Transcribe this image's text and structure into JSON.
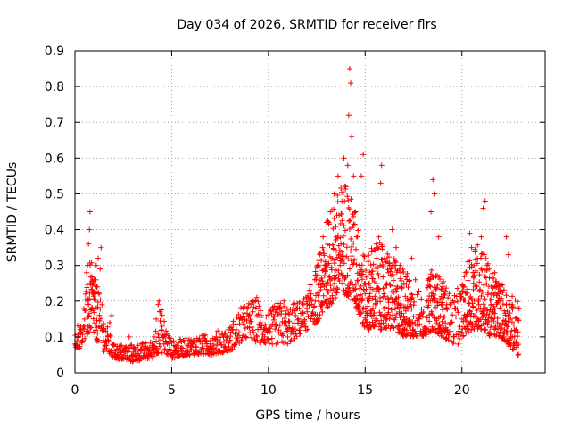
{
  "chart_data": {
    "type": "scatter",
    "title": "Day 034 of 2026, SRMTID for receiver flrs",
    "xlabel": "GPS time / hours",
    "ylabel": "SRMTID / TECUs",
    "xlim": [
      0,
      24.3
    ],
    "ylim": [
      0,
      0.9
    ],
    "xticks": [
      0,
      5,
      10,
      15,
      20
    ],
    "xtick_labels": [
      "0",
      "5",
      "10",
      "15",
      "20"
    ],
    "yticks": [
      0,
      0.1,
      0.2,
      0.3,
      0.4,
      0.5,
      0.6,
      0.7,
      0.8,
      0.9
    ],
    "ytick_labels": [
      "0",
      "0.1",
      "0.2",
      "0.3",
      "0.4",
      "0.5",
      "0.6",
      "0.7",
      "0.8",
      "0.9"
    ],
    "grid": true,
    "marker": "+",
    "color": "#ff0000",
    "series": [
      {
        "name": "SRMTID",
        "points": [
          [
            0.0,
            0.08
          ],
          [
            0.1,
            0.07
          ],
          [
            0.2,
            0.1
          ],
          [
            0.3,
            0.12
          ],
          [
            0.4,
            0.09
          ],
          [
            0.5,
            0.15
          ],
          [
            0.55,
            0.22
          ],
          [
            0.6,
            0.28
          ],
          [
            0.65,
            0.3
          ],
          [
            0.7,
            0.36
          ],
          [
            0.75,
            0.4
          ],
          [
            0.78,
            0.45
          ],
          [
            0.8,
            0.25
          ],
          [
            0.9,
            0.18
          ],
          [
            1.0,
            0.26
          ],
          [
            1.1,
            0.3
          ],
          [
            1.15,
            0.24
          ],
          [
            1.2,
            0.32
          ],
          [
            1.25,
            0.22
          ],
          [
            1.3,
            0.29
          ],
          [
            1.35,
            0.35
          ],
          [
            1.4,
            0.19
          ],
          [
            1.5,
            0.12
          ],
          [
            1.6,
            0.09
          ],
          [
            1.7,
            0.1
          ],
          [
            1.8,
            0.14
          ],
          [
            1.9,
            0.16
          ],
          [
            2.0,
            0.08
          ],
          [
            2.1,
            0.06
          ],
          [
            2.2,
            0.05
          ],
          [
            2.4,
            0.04
          ],
          [
            2.6,
            0.07
          ],
          [
            2.8,
            0.1
          ],
          [
            3.0,
            0.05
          ],
          [
            3.2,
            0.04
          ],
          [
            3.4,
            0.06
          ],
          [
            3.6,
            0.07
          ],
          [
            3.8,
            0.05
          ],
          [
            4.0,
            0.07
          ],
          [
            4.1,
            0.1
          ],
          [
            4.2,
            0.15
          ],
          [
            4.3,
            0.19
          ],
          [
            4.35,
            0.2
          ],
          [
            4.4,
            0.17
          ],
          [
            4.5,
            0.13
          ],
          [
            4.6,
            0.08
          ],
          [
            4.8,
            0.06
          ],
          [
            5.0,
            0.05
          ],
          [
            5.2,
            0.06
          ],
          [
            5.5,
            0.07
          ],
          [
            5.8,
            0.06
          ],
          [
            6.0,
            0.08
          ],
          [
            6.3,
            0.09
          ],
          [
            6.6,
            0.08
          ],
          [
            7.0,
            0.09
          ],
          [
            7.3,
            0.1
          ],
          [
            7.6,
            0.11
          ],
          [
            8.0,
            0.09
          ],
          [
            8.3,
            0.11
          ],
          [
            8.5,
            0.15
          ],
          [
            8.7,
            0.18
          ],
          [
            9.0,
            0.16
          ],
          [
            9.2,
            0.17
          ],
          [
            9.4,
            0.21
          ],
          [
            9.6,
            0.14
          ],
          [
            9.8,
            0.1
          ],
          [
            10.0,
            0.12
          ],
          [
            10.2,
            0.08
          ],
          [
            10.4,
            0.13
          ],
          [
            10.6,
            0.18
          ],
          [
            10.8,
            0.2
          ],
          [
            11.0,
            0.1
          ],
          [
            11.2,
            0.12
          ],
          [
            11.4,
            0.16
          ],
          [
            11.6,
            0.18
          ],
          [
            11.8,
            0.19
          ],
          [
            12.0,
            0.17
          ],
          [
            12.2,
            0.22
          ],
          [
            12.4,
            0.26
          ],
          [
            12.6,
            0.3
          ],
          [
            12.8,
            0.35
          ],
          [
            13.0,
            0.42
          ],
          [
            13.2,
            0.45
          ],
          [
            13.4,
            0.5
          ],
          [
            13.5,
            0.38
          ],
          [
            13.6,
            0.55
          ],
          [
            13.7,
            0.3
          ],
          [
            13.8,
            0.48
          ],
          [
            13.9,
            0.6
          ],
          [
            14.0,
            0.52
          ],
          [
            14.1,
            0.58
          ],
          [
            14.15,
            0.72
          ],
          [
            14.2,
            0.85
          ],
          [
            14.25,
            0.81
          ],
          [
            14.3,
            0.66
          ],
          [
            14.4,
            0.55
          ],
          [
            14.5,
            0.45
          ],
          [
            14.6,
            0.38
          ],
          [
            14.7,
            0.3
          ],
          [
            14.8,
            0.55
          ],
          [
            14.9,
            0.61
          ],
          [
            15.0,
            0.25
          ],
          [
            15.2,
            0.2
          ],
          [
            15.4,
            0.18
          ],
          [
            15.6,
            0.35
          ],
          [
            15.7,
            0.38
          ],
          [
            15.8,
            0.53
          ],
          [
            15.85,
            0.58
          ],
          [
            16.0,
            0.32
          ],
          [
            16.2,
            0.28
          ],
          [
            16.4,
            0.4
          ],
          [
            16.6,
            0.35
          ],
          [
            16.8,
            0.3
          ],
          [
            17.0,
            0.25
          ],
          [
            17.2,
            0.2
          ],
          [
            17.4,
            0.32
          ],
          [
            17.6,
            0.26
          ],
          [
            17.8,
            0.15
          ],
          [
            18.0,
            0.12
          ],
          [
            18.2,
            0.2
          ],
          [
            18.4,
            0.45
          ],
          [
            18.5,
            0.54
          ],
          [
            18.6,
            0.5
          ],
          [
            18.8,
            0.38
          ],
          [
            19.0,
            0.25
          ],
          [
            19.2,
            0.18
          ],
          [
            19.4,
            0.14
          ],
          [
            19.6,
            0.1
          ],
          [
            19.8,
            0.08
          ],
          [
            20.0,
            0.15
          ],
          [
            20.2,
            0.28
          ],
          [
            20.4,
            0.39
          ],
          [
            20.5,
            0.35
          ],
          [
            20.6,
            0.25
          ],
          [
            20.8,
            0.32
          ],
          [
            21.0,
            0.38
          ],
          [
            21.1,
            0.46
          ],
          [
            21.2,
            0.48
          ],
          [
            21.3,
            0.3
          ],
          [
            21.5,
            0.22
          ],
          [
            21.7,
            0.28
          ],
          [
            21.9,
            0.25
          ],
          [
            22.0,
            0.2
          ],
          [
            22.2,
            0.12
          ],
          [
            22.3,
            0.38
          ],
          [
            22.4,
            0.33
          ],
          [
            22.5,
            0.15
          ],
          [
            22.6,
            0.1
          ],
          [
            22.8,
            0.12
          ],
          [
            22.9,
            0.05
          ],
          [
            22.95,
            0.18
          ]
        ]
      }
    ],
    "envelope": {
      "x": [
        0.0,
        0.5,
        0.8,
        1.0,
        1.5,
        2.0,
        3.0,
        4.0,
        4.4,
        5.0,
        6.0,
        7.0,
        8.0,
        8.5,
        9.0,
        9.5,
        10.0,
        10.5,
        11.0,
        11.5,
        12.0,
        12.5,
        13.0,
        13.5,
        14.0,
        14.5,
        15.0,
        15.5,
        16.0,
        16.5,
        17.0,
        17.5,
        18.0,
        18.5,
        19.0,
        19.5,
        20.0,
        20.5,
        21.0,
        21.5,
        22.0,
        22.5,
        22.95
      ],
      "low": [
        0.06,
        0.08,
        0.12,
        0.1,
        0.06,
        0.04,
        0.03,
        0.04,
        0.06,
        0.04,
        0.05,
        0.05,
        0.06,
        0.08,
        0.1,
        0.08,
        0.08,
        0.08,
        0.08,
        0.1,
        0.12,
        0.14,
        0.18,
        0.2,
        0.22,
        0.18,
        0.12,
        0.12,
        0.12,
        0.12,
        0.1,
        0.1,
        0.1,
        0.12,
        0.1,
        0.08,
        0.1,
        0.12,
        0.12,
        0.1,
        0.1,
        0.07,
        0.05
      ],
      "high": [
        0.11,
        0.2,
        0.32,
        0.28,
        0.16,
        0.08,
        0.08,
        0.09,
        0.19,
        0.09,
        0.1,
        0.11,
        0.13,
        0.18,
        0.2,
        0.21,
        0.17,
        0.2,
        0.19,
        0.2,
        0.22,
        0.3,
        0.42,
        0.5,
        0.55,
        0.45,
        0.32,
        0.38,
        0.35,
        0.32,
        0.3,
        0.25,
        0.22,
        0.3,
        0.26,
        0.22,
        0.25,
        0.35,
        0.38,
        0.28,
        0.26,
        0.22,
        0.2
      ]
    }
  }
}
